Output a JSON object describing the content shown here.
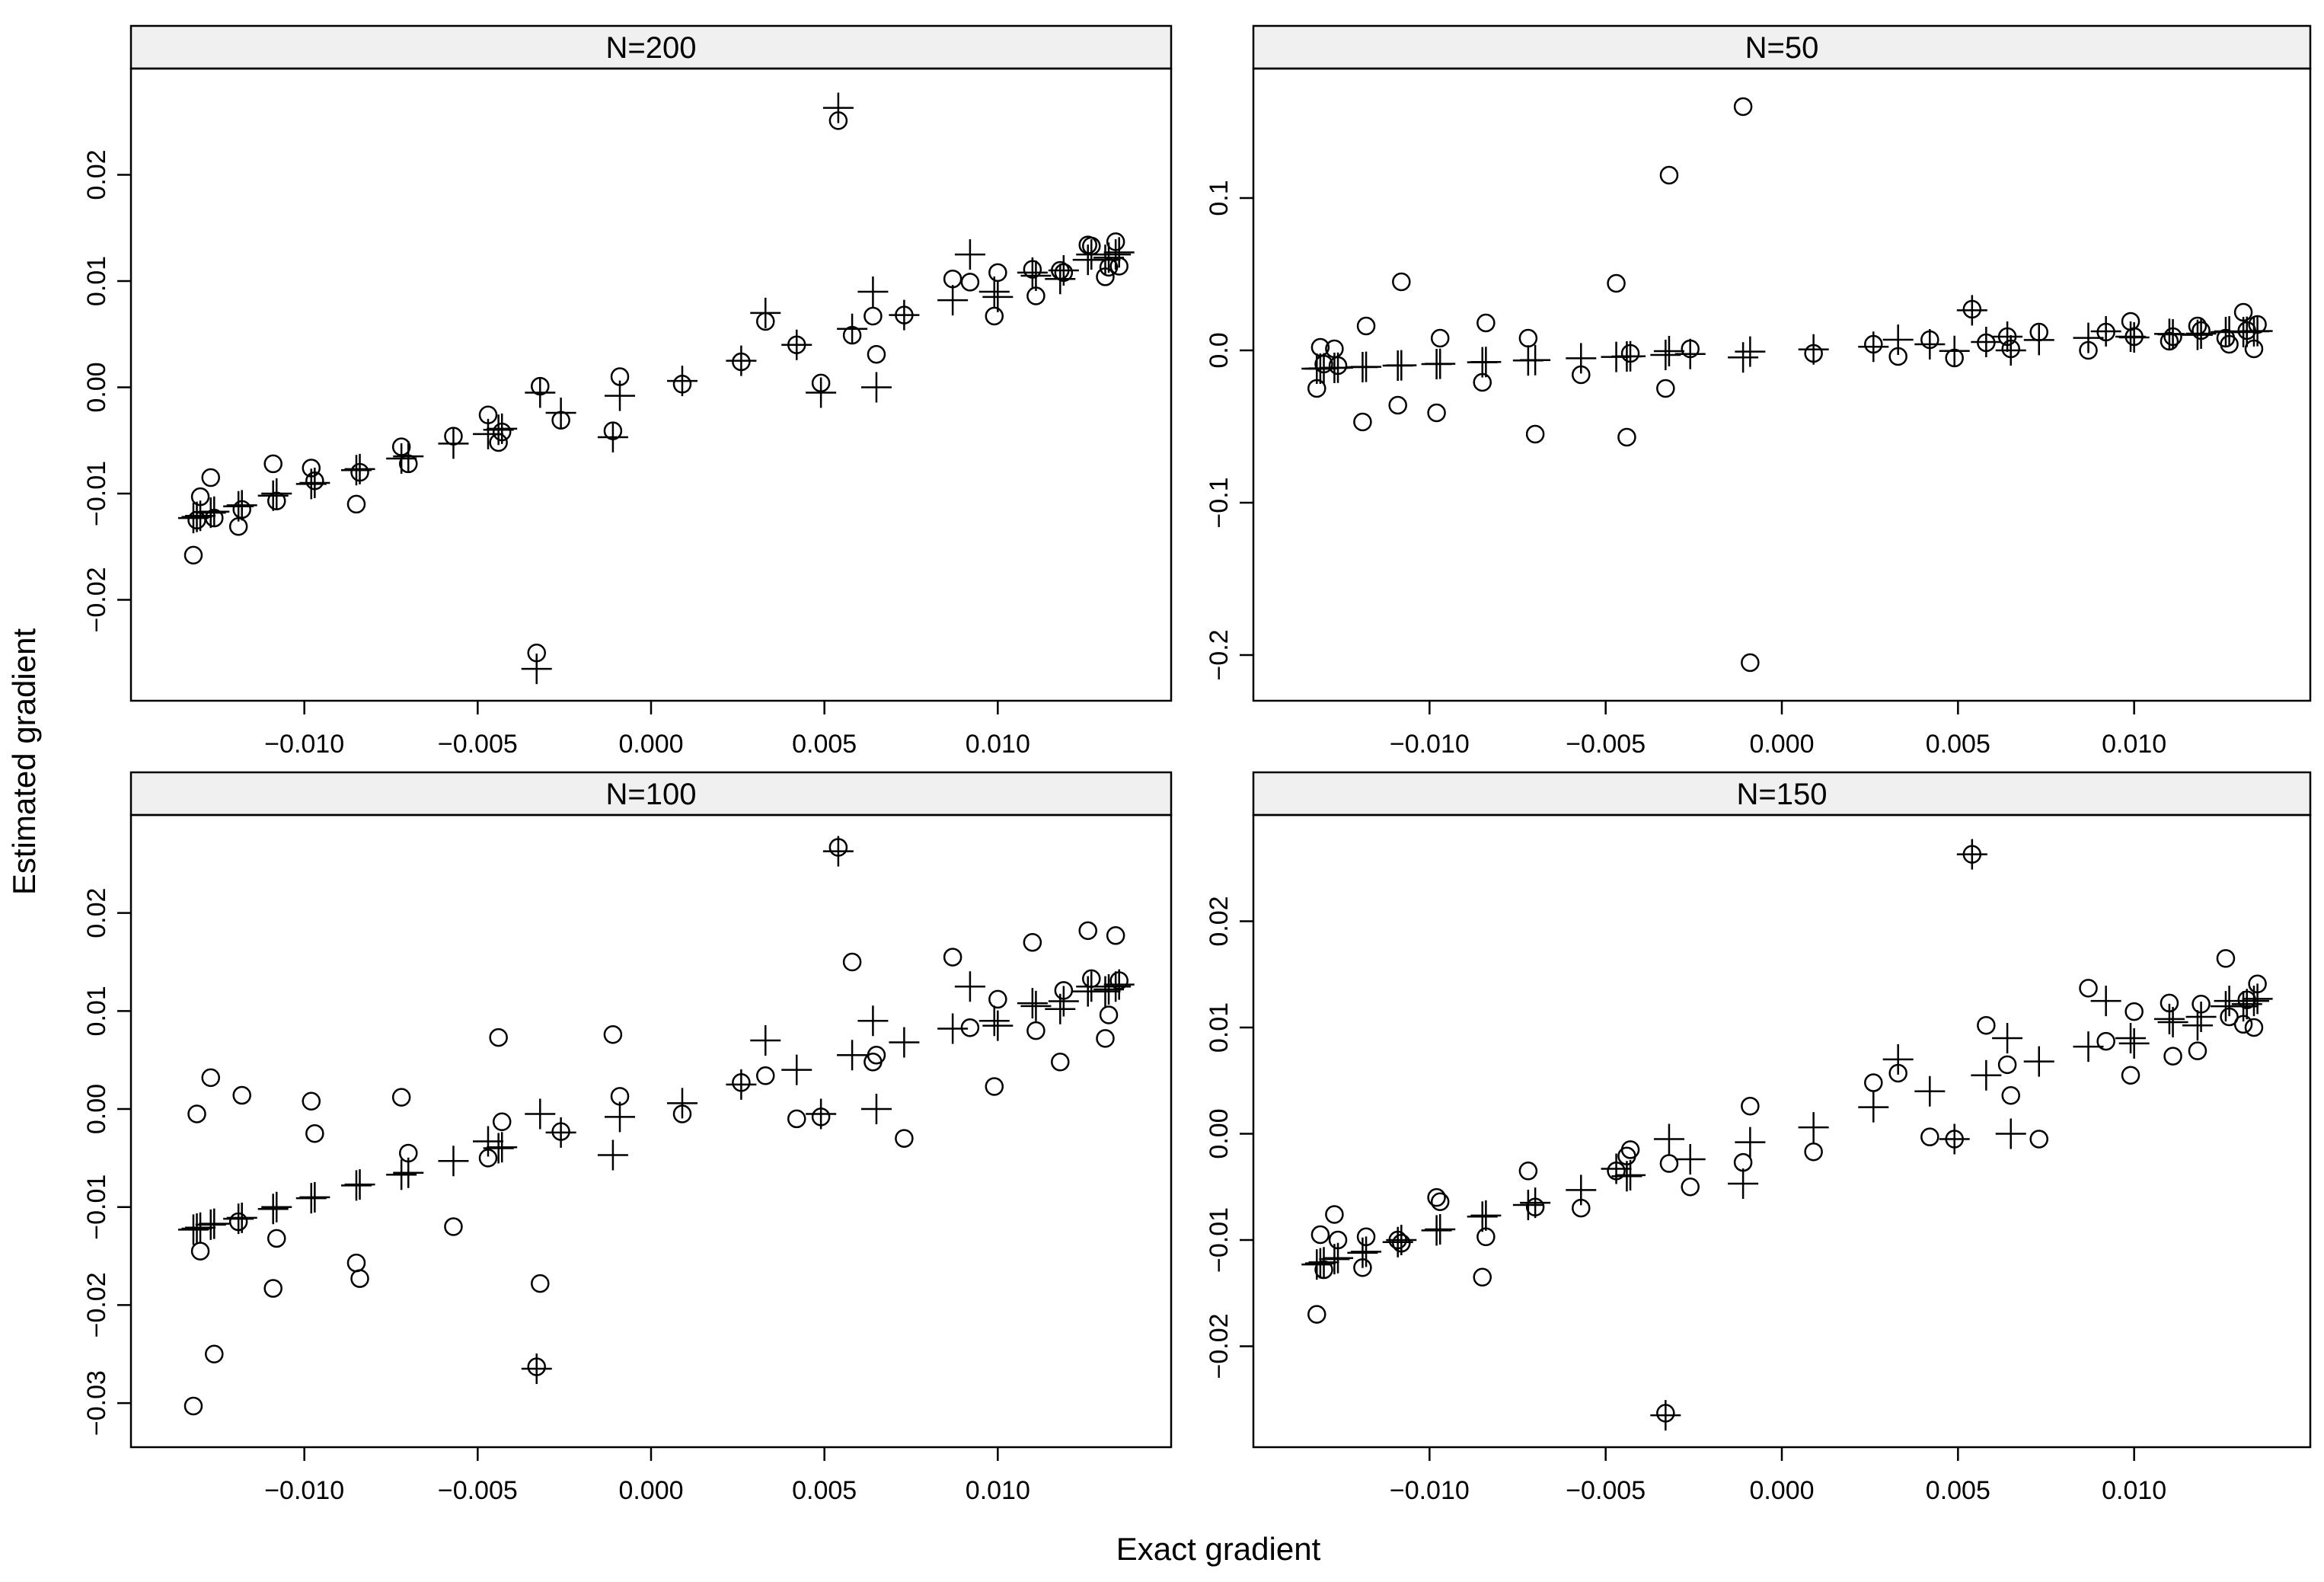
{
  "chart_data": {
    "type": "scatter",
    "layout": "lattice-2x2",
    "xlabel": "Exact gradient",
    "ylabel": "Estimated gradient",
    "markers": {
      "circle": "estimate",
      "plus": "reference"
    },
    "colors": {
      "points": "#000000",
      "strip_background": "#f0f0f0",
      "frame": "#000000"
    },
    "x": [
      -0.0132,
      -0.0131,
      -0.013,
      -0.0127,
      -0.0126,
      -0.0119,
      -0.0118,
      -0.0109,
      -0.0108,
      -0.0098,
      -0.0097,
      -0.0085,
      -0.0084,
      -0.0072,
      -0.007,
      -0.0057,
      -0.0047,
      -0.0044,
      -0.0043,
      -0.0033,
      -0.0032,
      -0.0026,
      -0.0011,
      -0.0009,
      0.0009,
      0.0026,
      0.0033,
      0.0042,
      0.0049,
      0.0054,
      0.0058,
      0.0064,
      0.0065,
      0.0073,
      0.0087,
      0.0092,
      0.0099,
      0.01,
      0.011,
      0.0111,
      0.0118,
      0.0119,
      0.0126,
      0.0127,
      0.0131,
      0.0132,
      0.0134,
      0.0135
    ],
    "panels": [
      {
        "strip": "N=200",
        "xlim": [
          -0.015,
          0.015
        ],
        "ylim": [
          -0.0295,
          0.03
        ],
        "xticks": [
          -0.01,
          -0.005,
          0.0,
          0.005,
          0.01
        ],
        "xtick_labels": [
          "−0.010",
          "−0.005",
          "0.000",
          "0.005",
          "0.010"
        ],
        "yticks": [
          -0.02,
          -0.01,
          0.0,
          0.01,
          0.02
        ],
        "ytick_labels": [
          "−0.02",
          "−0.01",
          "0.00",
          "0.01",
          "0.02"
        ],
        "plus_y": [
          -0.0123,
          -0.0122,
          -0.0121,
          -0.0118,
          -0.0117,
          -0.0112,
          -0.0111,
          -0.0102,
          -0.01,
          -0.0091,
          -0.009,
          -0.0078,
          -0.0077,
          -0.0067,
          -0.0065,
          -0.0053,
          -0.0044,
          -0.004,
          -0.0039,
          -0.0265,
          -0.0005,
          -0.0024,
          -0.0047,
          -0.0008,
          0.0006,
          0.0025,
          0.007,
          0.004,
          -0.0005,
          0.0263,
          0.0055,
          0.009,
          0.0,
          0.0068,
          0.0082,
          0.0125,
          0.009,
          0.0085,
          0.0108,
          0.0105,
          0.0102,
          0.011,
          0.012,
          0.0125,
          0.012,
          0.0122,
          0.0125,
          0.0127
        ],
        "circle_y": [
          -0.0158,
          -0.0125,
          -0.0103,
          -0.0085,
          -0.0123,
          -0.0131,
          -0.0115,
          -0.0072,
          -0.0107,
          -0.0076,
          -0.0088,
          -0.011,
          -0.008,
          -0.0056,
          -0.0072,
          -0.0046,
          -0.0026,
          -0.0052,
          -0.0042,
          -0.025,
          0.0001,
          -0.0031,
          -0.0041,
          0.001,
          0.0003,
          0.0024,
          0.0062,
          0.004,
          0.0004,
          0.0251,
          0.0049,
          0.0067,
          0.0031,
          0.0068,
          0.0102,
          0.0099,
          0.0067,
          0.0108,
          0.0111,
          0.0086,
          0.011,
          0.0108,
          0.0134,
          0.0133,
          0.0104,
          0.0113,
          0.0137,
          0.0114
        ]
      },
      {
        "strip": "N=50",
        "xlim": [
          -0.015,
          0.015
        ],
        "ylim": [
          -0.23,
          0.185
        ],
        "xticks": [
          -0.01,
          -0.005,
          0.0,
          0.005,
          0.01
        ],
        "xtick_labels": [
          "−0.010",
          "−0.005",
          "0.000",
          "0.005",
          "0.010"
        ],
        "yticks": [
          -0.2,
          -0.1,
          0.0,
          0.1
        ],
        "ytick_labels": [
          "−0.2",
          "−0.1",
          "0.0",
          "0.1"
        ],
        "plus_y": [
          -0.012,
          -0.012,
          -0.0118,
          -0.0115,
          -0.0114,
          -0.011,
          -0.0108,
          -0.01,
          -0.0098,
          -0.009,
          -0.0088,
          -0.0078,
          -0.0076,
          -0.0066,
          -0.0064,
          -0.0052,
          -0.0043,
          -0.004,
          -0.0039,
          -0.003,
          -0.0005,
          -0.0024,
          -0.0046,
          -0.0008,
          0.0006,
          0.0024,
          0.007,
          0.004,
          -0.0004,
          0.0263,
          0.0055,
          0.009,
          0.0,
          0.0068,
          0.0082,
          0.0125,
          0.009,
          0.0085,
          0.0108,
          0.0105,
          0.0102,
          0.011,
          0.012,
          0.0125,
          0.012,
          0.0122,
          0.0125,
          0.0127
        ],
        "circle_y": [
          -0.025,
          0.002,
          -0.009,
          0.001,
          -0.01,
          -0.047,
          0.016,
          -0.036,
          0.045,
          -0.041,
          0.008,
          -0.021,
          0.018,
          0.008,
          -0.055,
          -0.016,
          0.044,
          -0.057,
          -0.002,
          -0.025,
          0.115,
          0.001,
          0.16,
          -0.205,
          -0.002,
          0.004,
          -0.004,
          0.007,
          -0.005,
          0.027,
          0.005,
          0.009,
          0.001,
          0.012,
          0.0,
          0.012,
          0.019,
          0.009,
          0.006,
          0.009,
          0.016,
          0.013,
          0.008,
          0.004,
          0.025,
          0.013,
          0.001,
          0.017
        ]
      },
      {
        "strip": "N=100",
        "xlim": [
          -0.015,
          0.015
        ],
        "ylim": [
          -0.0345,
          0.03
        ],
        "xticks": [
          -0.01,
          -0.005,
          0.0,
          0.005,
          0.01
        ],
        "xtick_labels": [
          "−0.010",
          "−0.005",
          "0.000",
          "0.005",
          "0.010"
        ],
        "yticks": [
          -0.03,
          -0.02,
          -0.01,
          0.0,
          0.01,
          0.02
        ],
        "ytick_labels": [
          "−0.03",
          "−0.02",
          "−0.01",
          "0.00",
          "0.01",
          "0.02"
        ],
        "plus_y": [
          -0.0123,
          -0.0122,
          -0.0121,
          -0.0118,
          -0.0117,
          -0.0112,
          -0.0111,
          -0.0102,
          -0.01,
          -0.0091,
          -0.009,
          -0.0078,
          -0.0077,
          -0.0067,
          -0.0065,
          -0.0053,
          -0.0033,
          -0.004,
          -0.0039,
          -0.0265,
          -0.0005,
          -0.0024,
          -0.0047,
          -0.0008,
          0.0006,
          0.0025,
          0.007,
          0.004,
          -0.0005,
          0.0263,
          0.0055,
          0.009,
          0.0,
          0.0068,
          0.0082,
          0.0125,
          0.009,
          0.0085,
          0.0108,
          0.0105,
          0.0102,
          0.011,
          0.012,
          0.0125,
          0.012,
          0.0122,
          0.0125,
          0.0127
        ],
        "circle_y": [
          -0.0303,
          -0.0005,
          -0.0145,
          0.0032,
          -0.025,
          -0.0115,
          0.0014,
          -0.0183,
          -0.0132,
          0.0008,
          -0.0025,
          -0.0157,
          -0.0173,
          0.0012,
          -0.0045,
          -0.012,
          -0.005,
          0.0073,
          -0.0013,
          -0.0263,
          -0.0178,
          -0.0023,
          0.0076,
          0.0013,
          -0.0005,
          0.0027,
          0.0034,
          -0.001,
          -0.0008,
          0.0267,
          0.015,
          0.0048,
          0.0055,
          -0.003,
          0.0155,
          0.0083,
          0.0023,
          0.0112,
          0.017,
          0.008,
          0.0048,
          0.0121,
          0.0182,
          0.0133,
          0.0072,
          0.0096,
          0.0177,
          0.0131
        ]
      },
      {
        "strip": "N=150",
        "xlim": [
          -0.015,
          0.015
        ],
        "ylim": [
          -0.0295,
          0.03
        ],
        "xticks": [
          -0.01,
          -0.005,
          0.0,
          0.005,
          0.01
        ],
        "xtick_labels": [
          "−0.010",
          "−0.005",
          "0.000",
          "0.005",
          "0.010"
        ],
        "yticks": [
          -0.02,
          -0.01,
          0.0,
          0.01,
          0.02
        ],
        "ytick_labels": [
          "−0.02",
          "−0.01",
          "0.00",
          "0.01",
          "0.02"
        ],
        "plus_y": [
          -0.0123,
          -0.0122,
          -0.0121,
          -0.0118,
          -0.0117,
          -0.0112,
          -0.0111,
          -0.0102,
          -0.01,
          -0.0091,
          -0.009,
          -0.0078,
          -0.0077,
          -0.0067,
          -0.0065,
          -0.0053,
          -0.0033,
          -0.004,
          -0.0039,
          -0.0265,
          -0.0005,
          -0.0024,
          -0.0047,
          -0.0008,
          0.0006,
          0.0025,
          0.007,
          0.004,
          -0.0005,
          0.0263,
          0.0055,
          0.009,
          0.0,
          0.0068,
          0.0082,
          0.0125,
          0.009,
          0.0085,
          0.0108,
          0.0105,
          0.0102,
          0.011,
          0.012,
          0.0125,
          0.012,
          0.0122,
          0.0125,
          0.0127
        ],
        "circle_y": [
          -0.017,
          -0.0095,
          -0.0128,
          -0.0076,
          -0.01,
          -0.0126,
          -0.0097,
          -0.01,
          -0.0103,
          -0.006,
          -0.0064,
          -0.0135,
          -0.0097,
          -0.0035,
          -0.0069,
          -0.007,
          -0.0035,
          -0.0021,
          -0.0015,
          -0.0263,
          -0.0028,
          -0.005,
          -0.0027,
          0.0026,
          -0.0017,
          0.0048,
          0.0057,
          -0.0003,
          -0.0005,
          0.0263,
          0.0102,
          0.0065,
          0.0036,
          -0.0005,
          0.0137,
          0.0087,
          0.0055,
          0.0115,
          0.0123,
          0.0073,
          0.0078,
          0.0122,
          0.0165,
          0.011,
          0.0103,
          0.0126,
          0.01,
          0.0141
        ]
      }
    ]
  }
}
